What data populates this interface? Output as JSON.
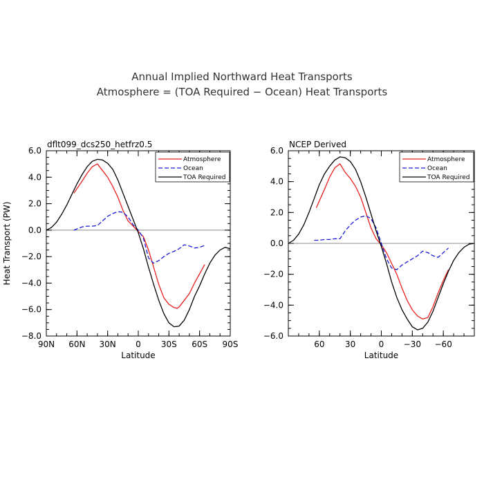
{
  "figure": {
    "title_line1": "Annual Implied Northward Heat Transports",
    "title_line2": "Atmosphere = (TOA Required − Ocean) Heat Transports"
  },
  "chart_data": [
    {
      "type": "line",
      "title": "dflt099_dcs250_hetfrz0.5",
      "xlabel": "Latitude",
      "ylabel": "Heat Transport (PW)",
      "xlim": [
        90,
        -90
      ],
      "ylim": [
        -8,
        6
      ],
      "xticks": [
        90,
        60,
        30,
        0,
        -30,
        -60,
        -90
      ],
      "xtick_labels": [
        "90N",
        "60N",
        "30N",
        "0",
        "30S",
        "60S",
        "90S"
      ],
      "yticks": [
        6,
        4,
        2,
        0,
        -2,
        -4,
        -6,
        -8
      ],
      "ytick_labels": [
        "6.0",
        "4.0",
        "2.0",
        "0.0",
        "−2.0",
        "−4.0",
        "−6.0",
        "−8.0"
      ],
      "legend_position": "top-right",
      "series": [
        {
          "name": "Atmosphere",
          "color": "#e8201c",
          "dash": "solid",
          "x": [
            63,
            55,
            50,
            45,
            40,
            35,
            30,
            25,
            20,
            15,
            10,
            5,
            0,
            -5,
            -10,
            -15,
            -20,
            -25,
            -30,
            -35,
            -38,
            -40,
            -45,
            -50,
            -55,
            -60,
            -65
          ],
          "y": [
            2.8,
            3.7,
            4.3,
            4.8,
            5.0,
            4.5,
            4.0,
            3.3,
            2.5,
            1.5,
            0.7,
            0.3,
            -0.1,
            -0.5,
            -1.5,
            -2.8,
            -4.1,
            -5.1,
            -5.6,
            -5.85,
            -5.9,
            -5.8,
            -5.3,
            -4.8,
            -4.0,
            -3.3,
            -2.6
          ]
        },
        {
          "name": "Ocean",
          "color": "#1a1ad6",
          "dash": "dashed",
          "x": [
            63,
            55,
            50,
            45,
            40,
            35,
            30,
            25,
            20,
            15,
            10,
            5,
            0,
            -5,
            -10,
            -15,
            -20,
            -25,
            -30,
            -35,
            -40,
            -45,
            -50,
            -55,
            -60,
            -65
          ],
          "y": [
            0.0,
            0.25,
            0.3,
            0.3,
            0.35,
            0.7,
            1.05,
            1.25,
            1.4,
            1.35,
            1.0,
            0.4,
            0.0,
            -0.6,
            -2.1,
            -2.5,
            -2.3,
            -2.0,
            -1.75,
            -1.6,
            -1.4,
            -1.1,
            -1.2,
            -1.35,
            -1.3,
            -1.15
          ]
        },
        {
          "name": "TOA Required",
          "color": "#000000",
          "dash": "solid",
          "x": [
            90,
            85,
            80,
            75,
            70,
            65,
            60,
            55,
            50,
            45,
            40,
            35,
            30,
            25,
            20,
            15,
            10,
            5,
            0,
            -5,
            -10,
            -15,
            -20,
            -25,
            -30,
            -35,
            -40,
            -45,
            -50,
            -55,
            -60,
            -65,
            -70,
            -75,
            -80,
            -85,
            -90
          ],
          "y": [
            0.0,
            0.2,
            0.6,
            1.2,
            1.9,
            2.7,
            3.5,
            4.2,
            4.8,
            5.2,
            5.35,
            5.3,
            5.05,
            4.6,
            3.8,
            2.8,
            1.8,
            0.8,
            -0.2,
            -1.4,
            -2.8,
            -4.1,
            -5.3,
            -6.3,
            -7.0,
            -7.3,
            -7.25,
            -6.8,
            -6.0,
            -5.0,
            -4.2,
            -3.3,
            -2.5,
            -1.9,
            -1.5,
            -1.3,
            -1.4
          ]
        }
      ]
    },
    {
      "type": "line",
      "title": "NCEP Derived",
      "xlabel": "Latitude",
      "ylabel": "",
      "xlim": [
        90,
        -90
      ],
      "ylim": [
        -6,
        6
      ],
      "xticks": [
        60,
        30,
        0,
        -30,
        -60
      ],
      "xtick_labels": [
        "60",
        "30",
        "0",
        "−30",
        "−60"
      ],
      "yticks": [
        6,
        4,
        2,
        0,
        -2,
        -4,
        -6
      ],
      "ytick_labels": [
        "6.0",
        "4.0",
        "2.0",
        "0.0",
        "−2.0",
        "−4.0",
        "−6.0"
      ],
      "legend_position": "top-right",
      "series": [
        {
          "name": "Atmosphere",
          "color": "#e8201c",
          "dash": "solid",
          "x": [
            63,
            55,
            50,
            45,
            40,
            35,
            30,
            25,
            20,
            15,
            10,
            5,
            0,
            -5,
            -10,
            -15,
            -20,
            -25,
            -30,
            -35,
            -40,
            -45,
            -50,
            -55,
            -60,
            -65
          ],
          "y": [
            2.3,
            3.5,
            4.3,
            4.9,
            5.15,
            4.6,
            4.2,
            3.7,
            3.0,
            2.0,
            1.0,
            0.3,
            -0.1,
            -0.6,
            -1.3,
            -2.0,
            -2.9,
            -3.7,
            -4.3,
            -4.7,
            -4.9,
            -4.8,
            -4.1,
            -3.2,
            -2.4,
            -1.7
          ]
        },
        {
          "name": "Ocean",
          "color": "#1a1ad6",
          "dash": "dashed",
          "x": [
            65,
            60,
            55,
            50,
            45,
            40,
            35,
            30,
            25,
            20,
            15,
            10,
            5,
            0,
            -5,
            -10,
            -15,
            -20,
            -25,
            -30,
            -35,
            -40,
            -45,
            -50,
            -55,
            -60,
            -65
          ],
          "y": [
            0.2,
            0.2,
            0.25,
            0.25,
            0.3,
            0.3,
            0.8,
            1.2,
            1.5,
            1.7,
            1.8,
            1.6,
            1.0,
            0.0,
            -1.0,
            -1.6,
            -1.7,
            -1.4,
            -1.2,
            -1.0,
            -0.8,
            -0.5,
            -0.6,
            -0.8,
            -0.9,
            -0.6,
            -0.3
          ]
        },
        {
          "name": "TOA Required",
          "color": "#000000",
          "dash": "solid",
          "x": [
            90,
            85,
            80,
            75,
            70,
            65,
            60,
            55,
            50,
            45,
            40,
            35,
            30,
            25,
            20,
            15,
            10,
            5,
            0,
            -5,
            -10,
            -15,
            -20,
            -25,
            -30,
            -35,
            -40,
            -45,
            -50,
            -55,
            -60,
            -65,
            -70,
            -75,
            -80,
            -85,
            -90
          ],
          "y": [
            0.0,
            0.2,
            0.6,
            1.2,
            2.0,
            2.9,
            3.8,
            4.5,
            5.0,
            5.4,
            5.6,
            5.55,
            5.3,
            4.8,
            4.0,
            3.0,
            1.9,
            0.8,
            -0.2,
            -1.3,
            -2.5,
            -3.5,
            -4.3,
            -4.9,
            -5.4,
            -5.6,
            -5.5,
            -5.1,
            -4.4,
            -3.5,
            -2.6,
            -1.8,
            -1.1,
            -0.6,
            -0.25,
            -0.05,
            0.0
          ]
        }
      ]
    }
  ]
}
